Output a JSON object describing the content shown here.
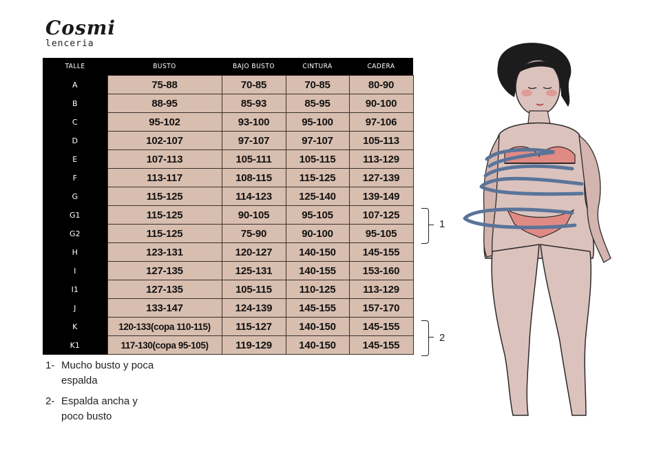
{
  "brand": {
    "name": "Cosmi",
    "subtitle": "lenceria"
  },
  "table": {
    "headers": [
      "TALLE",
      "BUSTO",
      "BAJO BUSTO",
      "CINTURA",
      "CADERA"
    ],
    "rows": [
      [
        "A",
        "75-88",
        "70-85",
        "70-85",
        "80-90"
      ],
      [
        "B",
        "88-95",
        "85-93",
        "85-95",
        "90-100"
      ],
      [
        "C",
        "95-102",
        "93-100",
        "95-100",
        "97-106"
      ],
      [
        "D",
        "102-107",
        "97-107",
        "97-107",
        "105-113"
      ],
      [
        "E",
        "107-113",
        "105-111",
        "105-115",
        "113-129"
      ],
      [
        "F",
        "113-117",
        "108-115",
        "115-125",
        "127-139"
      ],
      [
        "G",
        "115-125",
        "114-123",
        "125-140",
        "139-149"
      ],
      [
        "G1",
        "115-125",
        "90-105",
        "95-105",
        "107-125"
      ],
      [
        "G2",
        "115-125",
        "75-90",
        "90-100",
        "95-105"
      ],
      [
        "H",
        "123-131",
        "120-127",
        "140-150",
        "145-155"
      ],
      [
        "I",
        "127-135",
        "125-131",
        "140-155",
        "153-160"
      ],
      [
        "I1",
        "127-135",
        "105-115",
        "110-125",
        "113-129"
      ],
      [
        "J",
        "133-147",
        "124-139",
        "145-155",
        "157-170"
      ],
      [
        "K",
        "120-133(copa 110-115)",
        "115-127",
        "140-150",
        "145-155"
      ],
      [
        "K1",
        "117-130(copa 95-105)",
        "119-129",
        "140-150",
        "145-155"
      ]
    ]
  },
  "brackets": [
    {
      "label": "1"
    },
    {
      "label": "2"
    }
  ],
  "notes": [
    {
      "num": "1-",
      "text": "Mucho busto y poca espalda"
    },
    {
      "num": "2-",
      "text": "Espalda ancha y poco busto"
    }
  ],
  "colors": {
    "cell_bg": "#d8beaf",
    "header_bg": "#000000",
    "arrow": "#5a7499",
    "skin": "#dcc2bd",
    "lingerie": "#e08a84"
  }
}
